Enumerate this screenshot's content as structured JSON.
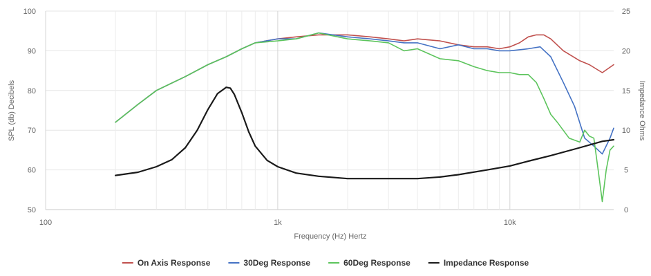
{
  "chart_data": {
    "type": "line",
    "title": "",
    "xlabel": "Frequency (Hz) Hertz",
    "ylabel": "SPL (db) Decibels",
    "y2label": "Impedance Ohms",
    "x_scale": "log",
    "xlim": [
      100,
      28000
    ],
    "ylim": [
      50,
      100
    ],
    "y2lim": [
      0,
      25
    ],
    "x_ticks": [
      100,
      1000,
      10000
    ],
    "x_tick_labels": [
      "100",
      "1k",
      "10k"
    ],
    "y_ticks": [
      50,
      60,
      70,
      80,
      90,
      100
    ],
    "y_tick_labels": [
      "50",
      "60",
      "70",
      "80",
      "90",
      "100"
    ],
    "y2_ticks": [
      0,
      5,
      10,
      15,
      20,
      25
    ],
    "y2_tick_labels": [
      "0",
      "5",
      "10",
      "15",
      "20",
      "25"
    ],
    "grid": true,
    "legend_position": "bottom-center",
    "series": [
      {
        "name": "On Axis Response",
        "color": "#c0504d",
        "axis": "left",
        "x": [
          200,
          250,
          300,
          400,
          500,
          600,
          700,
          800,
          1000,
          1200,
          1500,
          2000,
          2500,
          3000,
          3500,
          4000,
          5000,
          6000,
          7000,
          8000,
          9000,
          10000,
          11000,
          12000,
          13000,
          14000,
          15000,
          17000,
          20000,
          22000,
          25000,
          28000
        ],
        "values": [
          72,
          76.5,
          80,
          83.5,
          86.5,
          88.5,
          90.5,
          92,
          93,
          93.5,
          94,
          94,
          93.5,
          93,
          92.5,
          93,
          92.5,
          91.5,
          91,
          91,
          90.5,
          91,
          92,
          93.5,
          94,
          94,
          93,
          90,
          87.5,
          86.5,
          84.5,
          86.5
        ]
      },
      {
        "name": "30Deg Response",
        "color": "#4472c4",
        "axis": "left",
        "x": [
          200,
          250,
          300,
          400,
          500,
          600,
          700,
          800,
          1000,
          1200,
          1500,
          2000,
          2500,
          3000,
          3500,
          4000,
          5000,
          6000,
          7000,
          8000,
          9000,
          10000,
          12000,
          13500,
          15000,
          17000,
          19000,
          21000,
          23000,
          25000,
          27000,
          28000
        ],
        "values": [
          72,
          76.5,
          80,
          83.5,
          86.5,
          88.5,
          90.5,
          92,
          93,
          93,
          94.5,
          93.5,
          93,
          92.5,
          92,
          92,
          90.5,
          91.5,
          90.5,
          90.5,
          90,
          90,
          90.5,
          91,
          88.5,
          82,
          76,
          68,
          66,
          64,
          68,
          70.5
        ]
      },
      {
        "name": "60Deg Response",
        "color": "#5cc45c",
        "axis": "left",
        "x": [
          200,
          250,
          300,
          400,
          500,
          600,
          700,
          800,
          1000,
          1200,
          1500,
          2000,
          2500,
          3000,
          3500,
          4000,
          5000,
          6000,
          7000,
          8000,
          9000,
          10000,
          11000,
          12000,
          13000,
          14000,
          15000,
          16000,
          18000,
          20000,
          21000,
          22000,
          23000,
          24000,
          25000,
          26000,
          27000,
          28000
        ],
        "values": [
          72,
          76.5,
          80,
          83.5,
          86.5,
          88.5,
          90.5,
          92,
          92.5,
          93,
          94.5,
          93,
          92.5,
          92,
          90,
          90.5,
          88,
          87.5,
          86,
          85,
          84.5,
          84.5,
          84,
          84,
          82,
          78,
          74,
          72,
          68,
          67,
          70,
          68.5,
          68,
          60,
          52,
          60,
          65,
          66
        ]
      },
      {
        "name": "Impedance Response",
        "color": "#1a1a1a",
        "axis": "right",
        "x": [
          200,
          250,
          300,
          350,
          400,
          450,
          500,
          550,
          600,
          625,
          650,
          700,
          750,
          800,
          900,
          1000,
          1200,
          1500,
          2000,
          3000,
          4000,
          5000,
          6000,
          8000,
          10000,
          12000,
          15000,
          20000,
          25000,
          28000
        ],
        "values": [
          4.3,
          4.7,
          5.4,
          6.3,
          7.8,
          10,
          12.6,
          14.6,
          15.4,
          15.3,
          14.5,
          12.2,
          9.8,
          8,
          6.2,
          5.4,
          4.6,
          4.2,
          3.9,
          3.9,
          3.9,
          4.1,
          4.4,
          5,
          5.5,
          6.1,
          6.8,
          7.8,
          8.6,
          8.8
        ]
      }
    ]
  }
}
